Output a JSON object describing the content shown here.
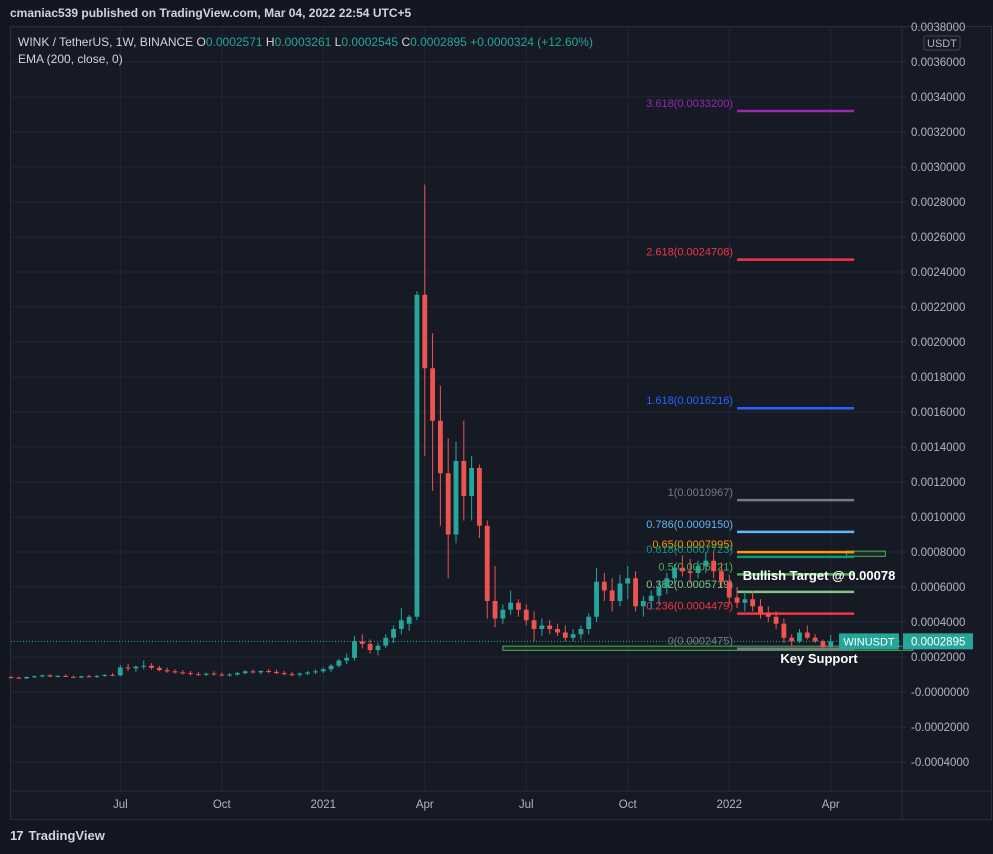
{
  "header": {
    "published_by": "cmaniac539 published on TradingView.com, Mar 04, 2022 22:54 UTC+5"
  },
  "legend": {
    "symbol": "WINK / TetherUS, 1W, BINANCE",
    "open_label": "O",
    "open": "0.0002571",
    "high_label": "H",
    "high": "0.0003261",
    "low_label": "L",
    "low": "0.0002545",
    "close_label": "C",
    "close": "0.0002895",
    "change": "+0.0000324 (+12.60%)",
    "indicator": "EMA (200, close, 0)"
  },
  "footer": {
    "brand": "TradingView",
    "logo_mark": "17"
  },
  "price_tag": {
    "symbol": "WINUSDT",
    "price": "0.0002895"
  },
  "chart_data": {
    "type": "candlestick",
    "currency_label": "USDT",
    "y_ticks": [
      "0.0038000",
      "0.0036000",
      "0.0034000",
      "0.0032000",
      "0.0030000",
      "0.0028000",
      "0.0026000",
      "0.0024000",
      "0.0022000",
      "0.0020000",
      "0.0018000",
      "0.0016000",
      "0.0014000",
      "0.0012000",
      "0.0010000",
      "0.0008000",
      "0.0006000",
      "0.0004000",
      "0.0002000",
      "-0.0000000",
      "-0.0002000",
      "-0.0004000"
    ],
    "ylim": [
      -0.00056,
      0.0038
    ],
    "x_ticks": [
      {
        "label": "Jul",
        "week": 14
      },
      {
        "label": "Oct",
        "week": 27
      },
      {
        "label": "2021",
        "week": 40
      },
      {
        "label": "Apr",
        "week": 53
      },
      {
        "label": "Jul",
        "week": 66
      },
      {
        "label": "Oct",
        "week": 79
      },
      {
        "label": "2022",
        "week": 92
      },
      {
        "label": "Apr",
        "week": 105
      }
    ],
    "xlim": [
      0,
      114
    ],
    "candles": [
      [
        0,
        8.5e-05,
        9.2e-05,
        7.8e-05,
        8.2e-05
      ],
      [
        1,
        8.2e-05,
        9e-05,
        7.5e-05,
        7.8e-05
      ],
      [
        2,
        7.8e-05,
        8.8e-05,
        7.4e-05,
        8.6e-05
      ],
      [
        3,
        8.6e-05,
        9.5e-05,
        8e-05,
        9e-05
      ],
      [
        4,
        9e-05,
        0.0001,
        8.3e-05,
        9.5e-05
      ],
      [
        5,
        9.5e-05,
        0.000102,
        8.5e-05,
        8.8e-05
      ],
      [
        6,
        8.8e-05,
        9.8e-05,
        8.2e-05,
        9.2e-05
      ],
      [
        7,
        9.2e-05,
        0.0001,
        8.5e-05,
        8.7e-05
      ],
      [
        8,
        8.7e-05,
        9.4e-05,
        8e-05,
        8.3e-05
      ],
      [
        9,
        8.3e-05,
        9.2e-05,
        7.8e-05,
        9e-05
      ],
      [
        10,
        9e-05,
        9.8e-05,
        8.3e-05,
        8.8e-05
      ],
      [
        11,
        8.8e-05,
        9.7e-05,
        8e-05,
        9.2e-05
      ],
      [
        12,
        9.2e-05,
        0.000102,
        8.7e-05,
        9.8e-05
      ],
      [
        13,
        9.8e-05,
        0.000108,
        9e-05,
        9.5e-05
      ],
      [
        14,
        9.5e-05,
        0.000155,
        9e-05,
        0.00014
      ],
      [
        15,
        0.00014,
        0.00016,
        0.00012,
        0.000135
      ],
      [
        16,
        0.000135,
        0.00015,
        0.000115,
        0.000145
      ],
      [
        17,
        0.000145,
        0.00018,
        0.00013,
        0.00015
      ],
      [
        18,
        0.00015,
        0.000165,
        0.000128,
        0.000138
      ],
      [
        19,
        0.000138,
        0.00015,
        0.000118,
        0.000125
      ],
      [
        20,
        0.000125,
        0.00014,
        0.00011,
        0.000118
      ],
      [
        21,
        0.000118,
        0.00013,
        0.000105,
        0.000112
      ],
      [
        22,
        0.000112,
        0.000125,
        0.0001,
        0.000108
      ],
      [
        23,
        0.000108,
        0.00012,
        9.5e-05,
        0.000102
      ],
      [
        24,
        0.000102,
        0.000115,
        9.2e-05,
        9.8e-05
      ],
      [
        25,
        9.8e-05,
        0.00011,
        9e-05,
        0.000105
      ],
      [
        26,
        0.000105,
        0.000118,
        9.5e-05,
        0.0001
      ],
      [
        27,
        0.0001,
        0.000112,
        9e-05,
        9.5e-05
      ],
      [
        28,
        9.5e-05,
        0.000108,
        8.8e-05,
        0.0001
      ],
      [
        29,
        0.0001,
        0.000115,
        9.2e-05,
        0.000108
      ],
      [
        30,
        0.000108,
        0.000125,
        0.0001,
        0.000118
      ],
      [
        31,
        0.000118,
        0.00013,
        0.000105,
        0.000112
      ],
      [
        32,
        0.000112,
        0.000125,
        0.0001,
        0.00012
      ],
      [
        33,
        0.00012,
        0.000132,
        0.000108,
        0.000115
      ],
      [
        34,
        0.000115,
        0.000128,
        0.000102,
        0.000108
      ],
      [
        35,
        0.000108,
        0.00012,
        9.5e-05,
        0.000102
      ],
      [
        36,
        0.000102,
        0.000115,
        9e-05,
        9.8e-05
      ],
      [
        37,
        9.8e-05,
        0.000112,
        8.8e-05,
        0.000105
      ],
      [
        38,
        0.000105,
        0.00012,
        9.5e-05,
        0.000112
      ],
      [
        39,
        0.000112,
        0.00013,
        0.000102,
        0.000118
      ],
      [
        40,
        0.000118,
        0.00014,
        0.000108,
        0.00013
      ],
      [
        41,
        0.00013,
        0.00016,
        0.000115,
        0.00015
      ],
      [
        42,
        0.00015,
        0.00019,
        0.00014,
        0.00018
      ],
      [
        43,
        0.00018,
        0.00022,
        0.00016,
        0.000195
      ],
      [
        44,
        0.000195,
        0.00032,
        0.00018,
        0.00029
      ],
      [
        45,
        0.00029,
        0.00033,
        0.00025,
        0.000275
      ],
      [
        46,
        0.000275,
        0.0003,
        0.00022,
        0.00024
      ],
      [
        47,
        0.00024,
        0.00028,
        0.00021,
        0.000265
      ],
      [
        48,
        0.000265,
        0.00033,
        0.00025,
        0.00031
      ],
      [
        49,
        0.00031,
        0.00038,
        0.00028,
        0.00036
      ],
      [
        50,
        0.00036,
        0.00048,
        0.00033,
        0.00041
      ],
      [
        51,
        0.00039,
        0.00044,
        0.00035,
        0.00043
      ],
      [
        52,
        0.00043,
        0.00229,
        0.00041,
        0.00227
      ],
      [
        53,
        0.00227,
        0.0029,
        0.00135,
        0.00185
      ],
      [
        54,
        0.00185,
        0.00205,
        0.00115,
        0.00155
      ],
      [
        55,
        0.00155,
        0.00175,
        0.00095,
        0.00125
      ],
      [
        56,
        0.00125,
        0.00145,
        0.00065,
        0.0009
      ],
      [
        57,
        0.0009,
        0.00143,
        0.00085,
        0.00132
      ],
      [
        58,
        0.00132,
        0.00155,
        0.00098,
        0.00112
      ],
      [
        59,
        0.00112,
        0.00135,
        0.00098,
        0.00128
      ],
      [
        60,
        0.00128,
        0.0013,
        0.00088,
        0.00095
      ],
      [
        61,
        0.00095,
        0.00098,
        0.00042,
        0.00052
      ],
      [
        62,
        0.00052,
        0.00072,
        0.00037,
        0.00042
      ],
      [
        63,
        0.00042,
        0.0005,
        0.00039,
        0.00047
      ],
      [
        64,
        0.00047,
        0.00058,
        0.00044,
        0.00051
      ],
      [
        65,
        0.00051,
        0.00053,
        0.00043,
        0.00047
      ],
      [
        66,
        0.00047,
        0.0005,
        0.00038,
        0.00041
      ],
      [
        67,
        0.00041,
        0.00046,
        0.00029,
        0.00036
      ],
      [
        68,
        0.00036,
        0.00042,
        0.00032,
        0.00038
      ],
      [
        69,
        0.00038,
        0.00041,
        0.00033,
        0.00036
      ],
      [
        70,
        0.00036,
        0.00039,
        0.00032,
        0.00034
      ],
      [
        71,
        0.00034,
        0.00038,
        0.00029,
        0.00031
      ],
      [
        72,
        0.00031,
        0.00036,
        0.00029,
        0.00033
      ],
      [
        73,
        0.00033,
        0.00038,
        0.0003,
        0.00036
      ],
      [
        74,
        0.00036,
        0.00045,
        0.00033,
        0.00043
      ],
      [
        75,
        0.00043,
        0.00071,
        0.0004,
        0.00063
      ],
      [
        76,
        0.00063,
        0.00068,
        0.00052,
        0.00058
      ],
      [
        77,
        0.00058,
        0.00065,
        0.00046,
        0.00052
      ],
      [
        78,
        0.00052,
        0.00067,
        0.00049,
        0.00062
      ],
      [
        79,
        0.00062,
        0.00072,
        0.00053,
        0.00065
      ],
      [
        80,
        0.00065,
        0.00069,
        0.00046,
        0.00049
      ],
      [
        81,
        0.00049,
        0.00055,
        0.00043,
        0.00052
      ],
      [
        82,
        0.00052,
        0.00058,
        0.00047,
        0.00055
      ],
      [
        83,
        0.00055,
        0.00063,
        0.0005,
        0.0006
      ],
      [
        84,
        0.0006,
        0.00068,
        0.00056,
        0.00065
      ],
      [
        85,
        0.00065,
        0.00073,
        0.00062,
        0.00071
      ],
      [
        86,
        0.00071,
        0.00078,
        0.00066,
        0.00069
      ],
      [
        87,
        0.00069,
        0.00076,
        0.00062,
        0.00068
      ],
      [
        88,
        0.00068,
        0.00075,
        0.00065,
        0.00072
      ],
      [
        89,
        0.00072,
        0.0008,
        0.00068,
        0.00075
      ],
      [
        90,
        0.00075,
        0.0008,
        0.00065,
        0.00069
      ],
      [
        91,
        0.00069,
        0.00074,
        0.0006,
        0.00063
      ],
      [
        92,
        0.00063,
        0.00067,
        0.0005,
        0.00054
      ],
      [
        93,
        0.00054,
        0.0006,
        0.00048,
        0.00051
      ],
      [
        94,
        0.00051,
        0.00057,
        0.00046,
        0.00053
      ],
      [
        95,
        0.00053,
        0.00058,
        0.00046,
        0.00049
      ],
      [
        96,
        0.00049,
        0.00053,
        0.00042,
        0.00045
      ],
      [
        97,
        0.00045,
        0.00049,
        0.0004,
        0.00043
      ],
      [
        98,
        0.00043,
        0.00046,
        0.00036,
        0.00039
      ],
      [
        99,
        0.00039,
        0.00042,
        0.00028,
        0.00031
      ],
      [
        100,
        0.00031,
        0.00033,
        0.00026,
        0.00029
      ],
      [
        101,
        0.00029,
        0.00036,
        0.00028,
        0.00034
      ],
      [
        102,
        0.00034,
        0.00038,
        0.0003,
        0.00031
      ],
      [
        103,
        0.00031,
        0.00033,
        0.00028,
        0.00029
      ],
      [
        104,
        0.00029,
        0.0003,
        0.00025,
        0.000257
      ],
      [
        105,
        0.0002571,
        0.0003261,
        0.0002545,
        0.0002895
      ]
    ],
    "fib_levels": [
      {
        "label": "3.618(0.0033200)",
        "value": 0.00332,
        "color": "#9c27b0",
        "x0": 93,
        "x1": 108
      },
      {
        "label": "2.618(0.0024708)",
        "value": 0.0024708,
        "color": "#f23645",
        "x0": 93,
        "x1": 108
      },
      {
        "label": "1.618(0.0016216)",
        "value": 0.0016216,
        "color": "#2962ff",
        "x0": 93,
        "x1": 108
      },
      {
        "label": "1(0.0010967)",
        "value": 0.0010967,
        "color": "#787b86",
        "x0": 93,
        "x1": 108
      },
      {
        "label": "0.786(0.0009150)",
        "value": 0.000915,
        "color": "#64b5f6",
        "x0": 93,
        "x1": 108
      },
      {
        "label": "0.65(0.0007995)",
        "value": 0.0007995,
        "color": "#ff9800",
        "x0": 93,
        "x1": 108
      },
      {
        "label": "0.618(0.0007723)",
        "value": 0.0007723,
        "color": "#089981",
        "x0": 93,
        "x1": 108
      },
      {
        "label": "0.5(0.0006721)",
        "value": 0.0006721,
        "color": "#4caf50",
        "x0": 93,
        "x1": 108
      },
      {
        "label": "0.382(0.0005719)",
        "value": 0.0005719,
        "color": "#81c784",
        "x0": 93,
        "x1": 108
      },
      {
        "label": "0.236(0.0004479)",
        "value": 0.0004479,
        "color": "#f23645",
        "x0": 93,
        "x1": 108
      },
      {
        "label": "0(0.0002475)",
        "value": 0.0002475,
        "color": "#787b86",
        "x0": 93,
        "x1": 108
      }
    ],
    "annotations": [
      {
        "text": "Bullish Target @ 0.00078",
        "week": 103.5,
        "value": 0.00064
      },
      {
        "text": "Key Support",
        "week": 103.5,
        "value": 0.000165
      }
    ],
    "zones": [
      {
        "name": "target-zone",
        "x0": 107,
        "x1": 112,
        "y0": 0.000775,
        "y1": 0.000805
      },
      {
        "name": "support-zone",
        "x0": 63,
        "x1": 115.5,
        "y0": 0.000238,
        "y1": 0.000262
      }
    ],
    "current_price": 0.0002895,
    "up_color": "#26a69a",
    "down_color": "#ef5350"
  }
}
